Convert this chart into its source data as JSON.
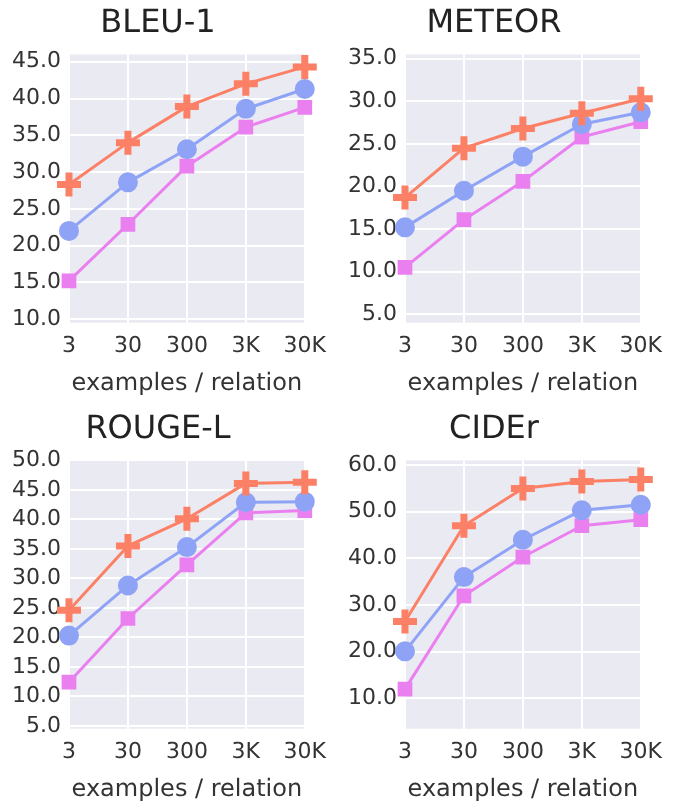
{
  "chart_data": [
    {
      "type": "line",
      "title": "BLEU-1",
      "xlabel": "examples / relation",
      "categories": [
        "3",
        "30",
        "300",
        "3K",
        "30K"
      ],
      "ylim": [
        9.5,
        46
      ],
      "yticks": [
        {
          "value": 10,
          "label": "10.0"
        },
        {
          "value": 15,
          "label": "15.0"
        },
        {
          "value": 20,
          "label": "20.0"
        },
        {
          "value": 25,
          "label": "25.0"
        },
        {
          "value": 30,
          "label": "30.0"
        },
        {
          "value": 35,
          "label": "35.0"
        },
        {
          "value": 40,
          "label": "40.0"
        },
        {
          "value": 45,
          "label": "45.0"
        }
      ],
      "grid": true,
      "series": [
        {
          "color": "#fb8065",
          "marker": "cross",
          "values": [
            28.3,
            34.0,
            38.9,
            42.0,
            44.3
          ]
        },
        {
          "color": "#8fa3f6",
          "marker": "circle",
          "values": [
            22.0,
            28.6,
            33.1,
            38.6,
            41.3
          ]
        },
        {
          "color": "#ea80f0",
          "marker": "square",
          "values": [
            15.2,
            22.9,
            30.8,
            36.1,
            38.8
          ]
        }
      ]
    },
    {
      "type": "line",
      "title": "METEOR",
      "xlabel": "examples / relation",
      "categories": [
        "3",
        "30",
        "300",
        "3K",
        "30K"
      ],
      "ylim": [
        4,
        35.5
      ],
      "yticks": [
        {
          "value": 5,
          "label": "5.0"
        },
        {
          "value": 10,
          "label": "10.0"
        },
        {
          "value": 15,
          "label": "15.0"
        },
        {
          "value": 20,
          "label": "20.0"
        },
        {
          "value": 25,
          "label": "25.0"
        },
        {
          "value": 30,
          "label": "30.0"
        },
        {
          "value": 35,
          "label": "35.0"
        }
      ],
      "grid": true,
      "series": [
        {
          "color": "#fb8065",
          "marker": "cross",
          "values": [
            18.7,
            24.5,
            26.8,
            28.6,
            30.3
          ]
        },
        {
          "color": "#8fa3f6",
          "marker": "circle",
          "values": [
            15.2,
            19.5,
            23.5,
            27.3,
            28.7
          ]
        },
        {
          "color": "#ea80f0",
          "marker": "square",
          "values": [
            10.5,
            16.1,
            20.6,
            25.8,
            27.6
          ]
        }
      ]
    },
    {
      "type": "line",
      "title": "ROUGE-L",
      "xlabel": "examples / relation",
      "categories": [
        "3",
        "30",
        "300",
        "3K",
        "30K"
      ],
      "ylim": [
        4.5,
        50
      ],
      "yticks": [
        {
          "value": 5,
          "label": "5.0"
        },
        {
          "value": 10,
          "label": "10.0"
        },
        {
          "value": 15,
          "label": "15.0"
        },
        {
          "value": 20,
          "label": "20.0"
        },
        {
          "value": 25,
          "label": "25.0"
        },
        {
          "value": 30,
          "label": "30.0"
        },
        {
          "value": 35,
          "label": "35.0"
        },
        {
          "value": 40,
          "label": "40.0"
        },
        {
          "value": 45,
          "label": "45.0"
        },
        {
          "value": 50,
          "label": "50.0"
        }
      ],
      "grid": true,
      "series": [
        {
          "color": "#fb8065",
          "marker": "cross",
          "values": [
            24.6,
            35.5,
            40.1,
            46.1,
            46.3
          ]
        },
        {
          "color": "#8fa3f6",
          "marker": "circle",
          "values": [
            20.3,
            28.8,
            35.3,
            42.9,
            43.0
          ]
        },
        {
          "color": "#ea80f0",
          "marker": "square",
          "values": [
            12.4,
            23.2,
            32.3,
            41.1,
            41.5
          ]
        }
      ]
    },
    {
      "type": "line",
      "title": "CIDEr",
      "xlabel": "examples / relation",
      "categories": [
        "3",
        "30",
        "300",
        "3K",
        "30K"
      ],
      "ylim": [
        3.5,
        61
      ],
      "yticks": [
        {
          "value": 10,
          "label": "10.0"
        },
        {
          "value": 20,
          "label": "20.0"
        },
        {
          "value": 30,
          "label": "30.0"
        },
        {
          "value": 40,
          "label": "40.0"
        },
        {
          "value": 50,
          "label": "50.0"
        },
        {
          "value": 60,
          "label": "60.0"
        }
      ],
      "grid": true,
      "series": [
        {
          "color": "#fb8065",
          "marker": "cross",
          "values": [
            26.5,
            47.0,
            55.0,
            56.5,
            56.9
          ]
        },
        {
          "color": "#8fa3f6",
          "marker": "circle",
          "values": [
            20.1,
            36.0,
            44.0,
            50.3,
            51.5
          ]
        },
        {
          "color": "#ea80f0",
          "marker": "square",
          "values": [
            12.0,
            32.0,
            40.3,
            47.0,
            48.3
          ]
        }
      ]
    }
  ]
}
